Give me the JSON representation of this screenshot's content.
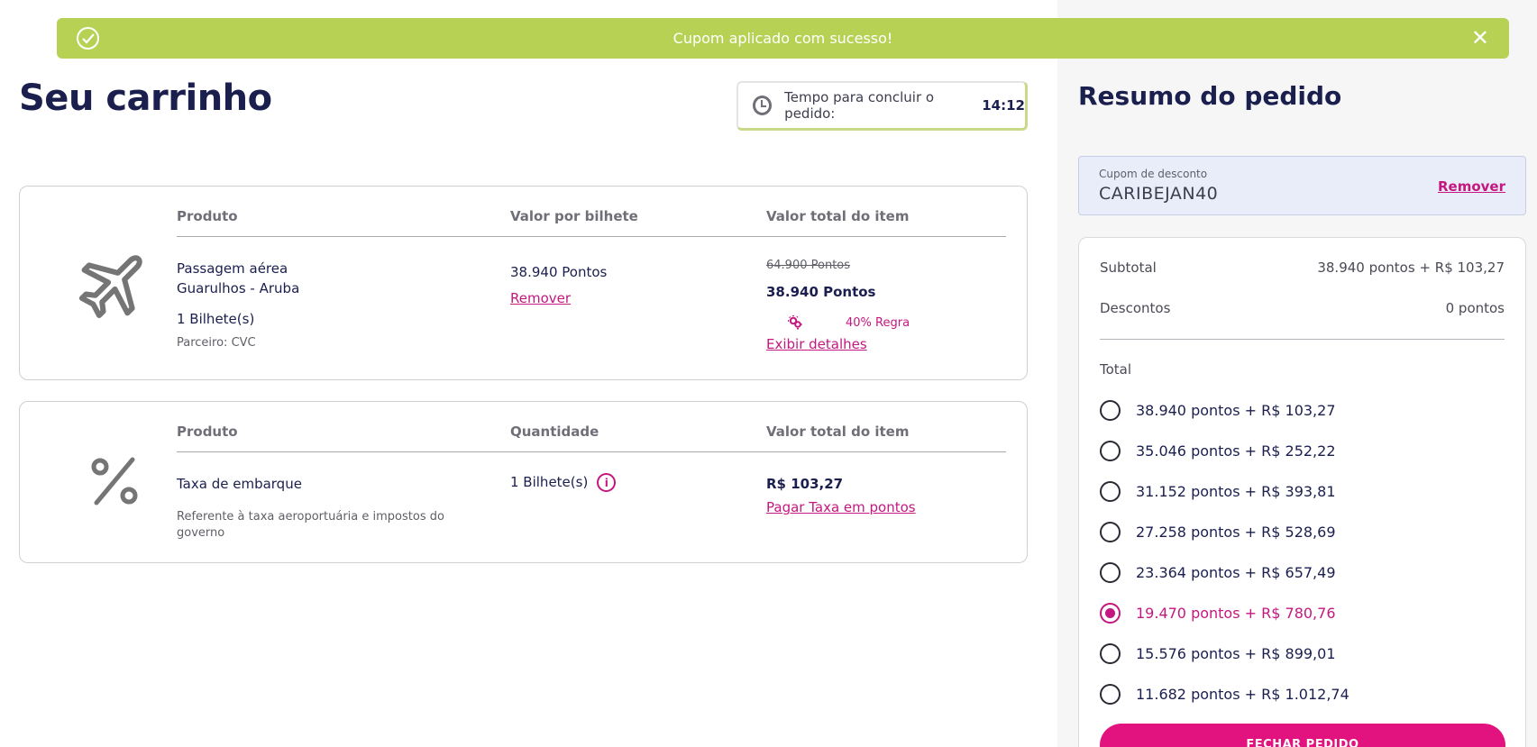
{
  "toast": {
    "message": "Cupom aplicado com sucesso!",
    "icon": "check-circle-icon",
    "close_icon": "close-icon",
    "color": "#b7d154"
  },
  "page_title": "Seu carrinho",
  "timer": {
    "label": "Tempo para concluir o pedido:",
    "value": "14:12"
  },
  "cart_items": [
    {
      "icon": "airplane-icon",
      "headers": [
        "Produto",
        "Valor por bilhete",
        "Valor total do item"
      ],
      "product_name": "Passagem aérea",
      "route": "Guarulhos - Aruba",
      "quantity": "1 Bilhete(s)",
      "partner": "Parceiro: CVC",
      "unit_value": "38.940 Pontos",
      "remove_label": "Remover",
      "original_total": "64.900 Pontos",
      "total": "38.940 Pontos",
      "rule_label": "40% Regra",
      "details_label": "Exibir detalhes"
    },
    {
      "icon": "percent-icon",
      "headers": [
        "Produto",
        "Quantidade",
        "Valor total do item"
      ],
      "product_name": "Taxa de embarque",
      "description": "Referente à taxa aeroportuária e impostos do governo",
      "quantity": "1 Bilhete(s)",
      "total": "R$ 103,27",
      "pay_points_label": "Pagar Taxa em pontos"
    }
  ],
  "summary": {
    "title": "Resumo do pedido",
    "coupon_label": "Cupom de desconto",
    "coupon_code": "CARIBEJAN40",
    "coupon_remove": "Remover",
    "subtotal_label": "Subtotal",
    "subtotal_value": "38.940 pontos + R$ 103,27",
    "discount_label": "Descontos",
    "discount_value": "0 pontos",
    "total_label": "Total",
    "options": [
      "38.940 pontos + R$ 103,27",
      "35.046 pontos + R$ 252,22",
      "31.152 pontos + R$ 393,81",
      "27.258 pontos + R$ 528,69",
      "23.364 pontos + R$ 657,49",
      "19.470 pontos + R$ 780,76",
      "15.576 pontos + R$ 899,01",
      "11.682 pontos + R$ 1.012,74"
    ],
    "selected_option": "19.470 pontos + R$ 780,76",
    "checkout_button": "FECHAR PEDIDO",
    "accent_color": "#c4177f"
  }
}
